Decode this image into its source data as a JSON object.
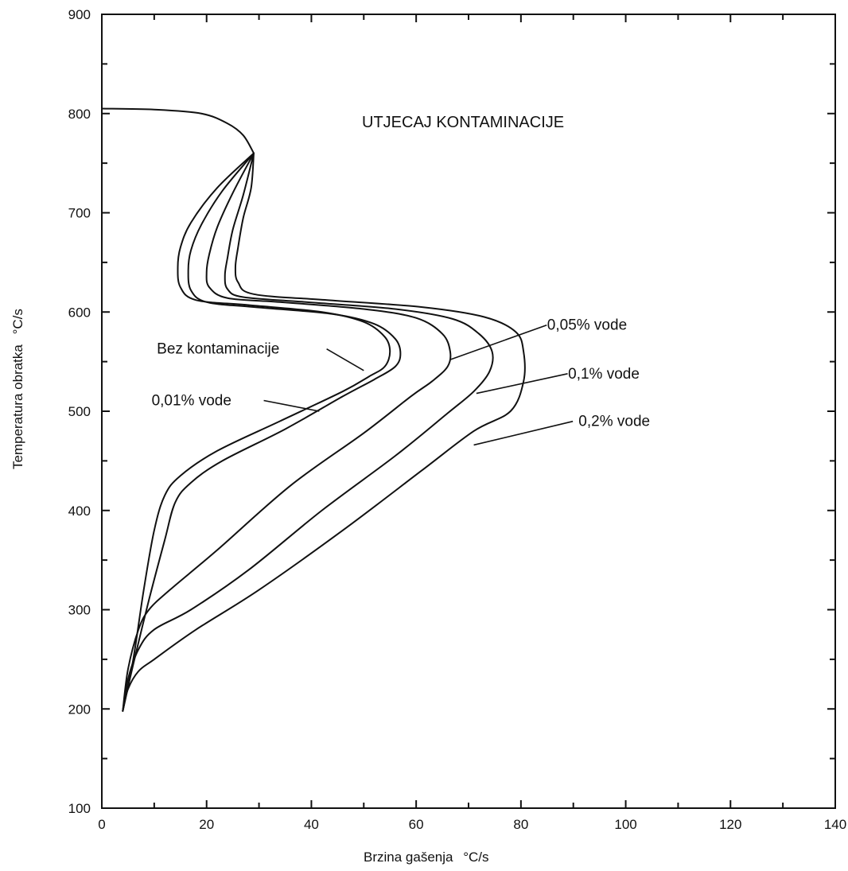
{
  "chart_data": {
    "type": "line",
    "title": "UTJECAJ KONTAMINACIJE",
    "xlabel": "Brzina gašenja",
    "xlabel_unit": "°C/s",
    "ylabel": "Temperatura obratka",
    "ylabel_unit": "°C/s",
    "xlim": [
      0,
      140
    ],
    "ylim": [
      100,
      900
    ],
    "x_ticks": [
      0,
      20,
      40,
      60,
      80,
      100,
      120,
      140
    ],
    "y_ticks": [
      100,
      200,
      300,
      400,
      500,
      600,
      700,
      800,
      900
    ],
    "x_tick_labels": [
      "0",
      "20",
      "40",
      "60",
      "80",
      "100",
      "120",
      "140"
    ],
    "y_tick_labels": [
      "100",
      "200",
      "300",
      "400",
      "500",
      "600",
      "700",
      "800",
      "900"
    ],
    "grid": false,
    "legend": "none",
    "common_segment": {
      "x": [
        0,
        10,
        19,
        24,
        27,
        29
      ],
      "y": [
        805,
        804,
        800,
        790,
        778,
        760
      ]
    },
    "series": [
      {
        "name": "Bez kontaminacije",
        "x": [
          29,
          22,
          17,
          15,
          14.5,
          15,
          18,
          28,
          42,
          50,
          54,
          55,
          54,
          51,
          46,
          34,
          22,
          15,
          12,
          10,
          8,
          6,
          4
        ],
        "y": [
          760,
          725,
          690,
          665,
          645,
          625,
          612,
          607,
          600,
          590,
          575,
          560,
          545,
          535,
          520,
          490,
          460,
          435,
          415,
          380,
          320,
          250,
          198
        ]
      },
      {
        "name": "0,01% vode",
        "x": [
          29,
          23,
          19,
          17,
          16.5,
          17,
          20,
          29,
          44,
          52,
          56,
          57,
          56,
          52,
          46,
          35,
          23,
          17,
          14,
          12,
          9,
          6,
          4
        ],
        "y": [
          760,
          722,
          688,
          662,
          642,
          622,
          610,
          605,
          598,
          588,
          573,
          558,
          545,
          532,
          515,
          482,
          450,
          428,
          408,
          370,
          310,
          245,
          198
        ]
      },
      {
        "name": "0,05% vode",
        "x": [
          29,
          25,
          22,
          20.5,
          20,
          20.5,
          24,
          34,
          50,
          60,
          65,
          66.5,
          66,
          63,
          59,
          50,
          36,
          22,
          13,
          9,
          7,
          5,
          4
        ],
        "y": [
          760,
          720,
          685,
          658,
          640,
          625,
          614,
          610,
          603,
          594,
          578,
          560,
          545,
          530,
          515,
          478,
          425,
          360,
          320,
          300,
          280,
          240,
          198
        ]
      },
      {
        "name": "0,1% vode",
        "x": [
          29,
          27,
          25,
          24,
          23.5,
          24,
          27,
          39,
          56,
          67,
          72,
          74.5,
          74,
          71,
          66,
          56,
          42,
          28,
          17,
          10,
          7,
          5,
          4
        ],
        "y": [
          760,
          718,
          683,
          655,
          637,
          623,
          615,
          610,
          603,
          593,
          578,
          560,
          540,
          520,
          498,
          455,
          400,
          340,
          300,
          280,
          260,
          230,
          198
        ]
      },
      {
        "name": "0,2% vode",
        "x": [
          29,
          28.5,
          27,
          26,
          25.5,
          26,
          29,
          43,
          61,
          73,
          79,
          80.5,
          80.5,
          78,
          71,
          61,
          46,
          30,
          18,
          10,
          7,
          5,
          4
        ],
        "y": [
          760,
          725,
          695,
          665,
          645,
          630,
          618,
          612,
          605,
          595,
          580,
          560,
          530,
          500,
          480,
          440,
          380,
          320,
          280,
          250,
          238,
          220,
          198
        ]
      }
    ],
    "annotations": [
      {
        "text": "Bez kontaminacije",
        "x": 10.5,
        "y": 558,
        "ax": 50,
        "ay": 541,
        "anchor": "start",
        "label_end_x": 42
      },
      {
        "text": "0,01% vode",
        "x": 9.5,
        "y": 506,
        "ax": 41.5,
        "ay": 500,
        "anchor": "start",
        "label_end_x": 30
      },
      {
        "text": "0,05% vode",
        "x": 85,
        "y": 582,
        "ax": 66.5,
        "ay": 552,
        "anchor": "start",
        "label_end_x": 84
      },
      {
        "text": "0,1% vode",
        "x": 89,
        "y": 533,
        "ax": 71.5,
        "ay": 518,
        "anchor": "start",
        "label_end_x": 88
      },
      {
        "text": "0,2% vode",
        "x": 91,
        "y": 485,
        "ax": 71,
        "ay": 466,
        "anchor": "start",
        "label_end_x": 89
      }
    ]
  }
}
